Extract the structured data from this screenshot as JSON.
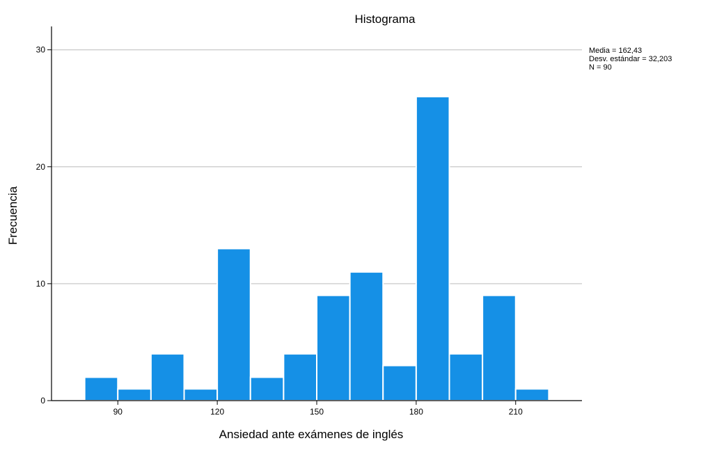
{
  "colors": {
    "bar_fill": "#1590e6",
    "bar_stroke": "#ffffff",
    "gridline": "#c8c8c8",
    "axis": "#000000"
  },
  "chart_data": {
    "type": "bar",
    "title": "Histograma",
    "xlabel": "Ansiedad ante exámenes de inglés",
    "ylabel": "Frecuencia",
    "bin_width": 10,
    "bins": [
      {
        "start": 80,
        "end": 90,
        "count": 2
      },
      {
        "start": 90,
        "end": 100,
        "count": 1
      },
      {
        "start": 100,
        "end": 110,
        "count": 4
      },
      {
        "start": 110,
        "end": 120,
        "count": 1
      },
      {
        "start": 120,
        "end": 130,
        "count": 13
      },
      {
        "start": 130,
        "end": 140,
        "count": 2
      },
      {
        "start": 140,
        "end": 150,
        "count": 4
      },
      {
        "start": 150,
        "end": 160,
        "count": 9
      },
      {
        "start": 160,
        "end": 170,
        "count": 11
      },
      {
        "start": 170,
        "end": 180,
        "count": 3
      },
      {
        "start": 180,
        "end": 190,
        "count": 26
      },
      {
        "start": 190,
        "end": 200,
        "count": 4
      },
      {
        "start": 200,
        "end": 210,
        "count": 9
      },
      {
        "start": 210,
        "end": 220,
        "count": 1
      }
    ],
    "xlim": [
      70,
      230
    ],
    "ylim": [
      0,
      32
    ],
    "x_ticks": [
      90,
      120,
      150,
      180,
      210
    ],
    "y_ticks": [
      0,
      10,
      20,
      30
    ],
    "x_tick_labels": [
      "90",
      "120",
      "150",
      "180",
      "210"
    ],
    "y_tick_labels": [
      "0",
      "10",
      "20",
      "30"
    ],
    "grid": true,
    "grid_axis": "y",
    "legend": "none",
    "stats": {
      "mean_text": "Media = 162,43",
      "sd_text": "Desv. estándar = 32,203",
      "n_text": "N = 90"
    }
  }
}
